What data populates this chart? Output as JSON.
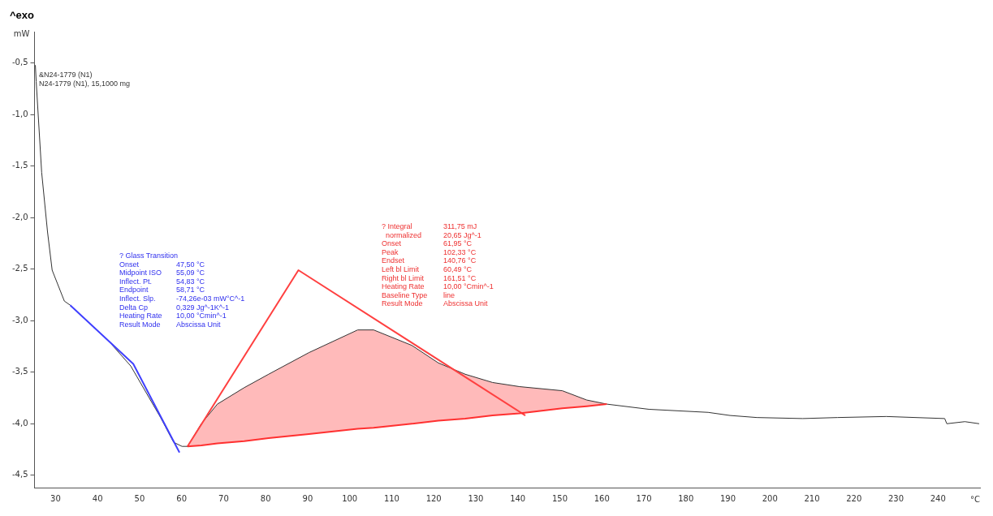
{
  "chart_data": {
    "type": "line",
    "title": "^exo",
    "ylabel": "mW",
    "xlabel": "°C",
    "marker": "none",
    "legend": false,
    "grid": false,
    "xlim": [
      25,
      250
    ],
    "xticks": [
      30,
      40,
      50,
      60,
      70,
      80,
      90,
      100,
      110,
      120,
      130,
      140,
      150,
      160,
      170,
      180,
      190,
      200,
      210,
      220,
      230,
      240
    ],
    "ylim": [
      -4.62,
      -0.2
    ],
    "yticks": [
      {
        "value": -0.5,
        "label": "-0,5"
      },
      {
        "value": -1,
        "label": "-1,0"
      },
      {
        "value": -1.5,
        "label": "-1,5"
      },
      {
        "value": -2,
        "label": "-2,0"
      },
      {
        "value": -2.5,
        "label": "-2,5"
      },
      {
        "value": -3,
        "label": "-3,0"
      },
      {
        "value": -3.5,
        "label": "-3,5"
      },
      {
        "value": -4,
        "label": "-4,0"
      },
      {
        "value": -4.5,
        "label": "-4,5"
      }
    ],
    "series": [
      {
        "type": "line",
        "color": "#333333",
        "x": [
          25.2,
          25.4,
          26.7,
          28.1,
          29.2,
          32.1,
          33.5,
          42.7,
          47.9,
          55.0,
          58.1,
          60.1,
          61.4,
          64.7,
          68.5,
          74.9,
          80.7,
          90.3,
          101.9,
          105.7,
          114.8,
          121.1,
          127.5,
          134,
          140.4,
          150.6,
          156.4,
          161.2,
          171.2,
          185.3,
          190.5,
          196.9,
          207.8,
          216.1,
          227.7,
          241.6,
          242.1,
          246.4,
          249.8
        ],
        "values": [
          -0.52,
          -0.68,
          -1.56,
          -2.14,
          -2.51,
          -2.81,
          -2.85,
          -3.2,
          -3.44,
          -3.94,
          -4.18,
          -4.22,
          -4.22,
          -4.0,
          -3.81,
          -3.65,
          -3.52,
          -3.31,
          -3.09,
          -3.09,
          -3.24,
          -3.41,
          -3.52,
          -3.6,
          -3.64,
          -3.68,
          -3.77,
          -3.81,
          -3.86,
          -3.89,
          -3.92,
          -3.94,
          -3.95,
          -3.94,
          -3.93,
          -3.95,
          -4.0,
          -3.98,
          -4.0
        ]
      },
      {
        "type": "line",
        "color": "#4040ff",
        "x": [
          33.5,
          48.5,
          59.5
        ],
        "values": [
          -2.85,
          -3.42,
          -4.28
        ]
      },
      {
        "type": "line",
        "color": "#ff4040",
        "x": [
          61.4,
          87.8,
          141.8
        ],
        "values": [
          -4.22,
          -2.51,
          -3.92
        ]
      },
      {
        "type": "line",
        "color": "#ff3030",
        "x": [
          61.4,
          64.7,
          68.5,
          74.9,
          80.7,
          90.3,
          101.9,
          105.7,
          114.8,
          121.1,
          127.5,
          134,
          140.4,
          150.6,
          156.4,
          161.2
        ],
        "values": [
          -4.22,
          -4.21,
          -4.19,
          -4.17,
          -4.14,
          -4.1,
          -4.05,
          -4.04,
          -4.0,
          -3.97,
          -3.95,
          -3.92,
          -3.9,
          -3.85,
          -3.83,
          -3.81
        ],
        "lower": [
          -4.22,
          -4.21,
          -4.19,
          -4.17,
          -4.14,
          -4.1,
          -4.05,
          -4.04,
          -4.0,
          -3.97,
          -3.95,
          -3.92,
          -3.9,
          -3.85,
          -3.83,
          -3.81
        ],
        "upper": [
          -4.22,
          -4.0,
          -3.81,
          -3.65,
          -3.52,
          -3.31,
          -3.09,
          -3.09,
          -3.24,
          -3.41,
          -3.52,
          -3.6,
          -3.64,
          -3.68,
          -3.77,
          -3.81
        ]
      }
    ],
    "annotations": [
      "&N24-1779 (N1)",
      "N24-1779 (N1), 15,1000 mg",
      "? Glass Transition",
      "Onset\t47,50 °C",
      "Midpoint ISO\t55,09 °C",
      "Inflect. Pt.\t54,83 °C",
      "Endpoint\t58,71 °C",
      "Inflect. Slp.\t-74,26e-03 mW°C^-1",
      "Delta Cp\t0,329 Jg^-1K^-1",
      "Heating Rate\t10,00 °Cmin^-1",
      "Result Mode\tAbscissa Unit",
      "? Integral\t311,75 mJ",
      "  normalized\t20,65 Jg^-1",
      "Onset\t61,95 °C",
      "Peak\t102,33 °C",
      "Endset\t140,76 °C",
      "Left bl Limit\t60,49 °C",
      "Right bl Limit\t161,51 °C",
      "Heating Rate\t10,00 °Cmin^-1",
      "Baseline Type\tline",
      "Result Mode\tAbscissa Unit"
    ]
  }
}
